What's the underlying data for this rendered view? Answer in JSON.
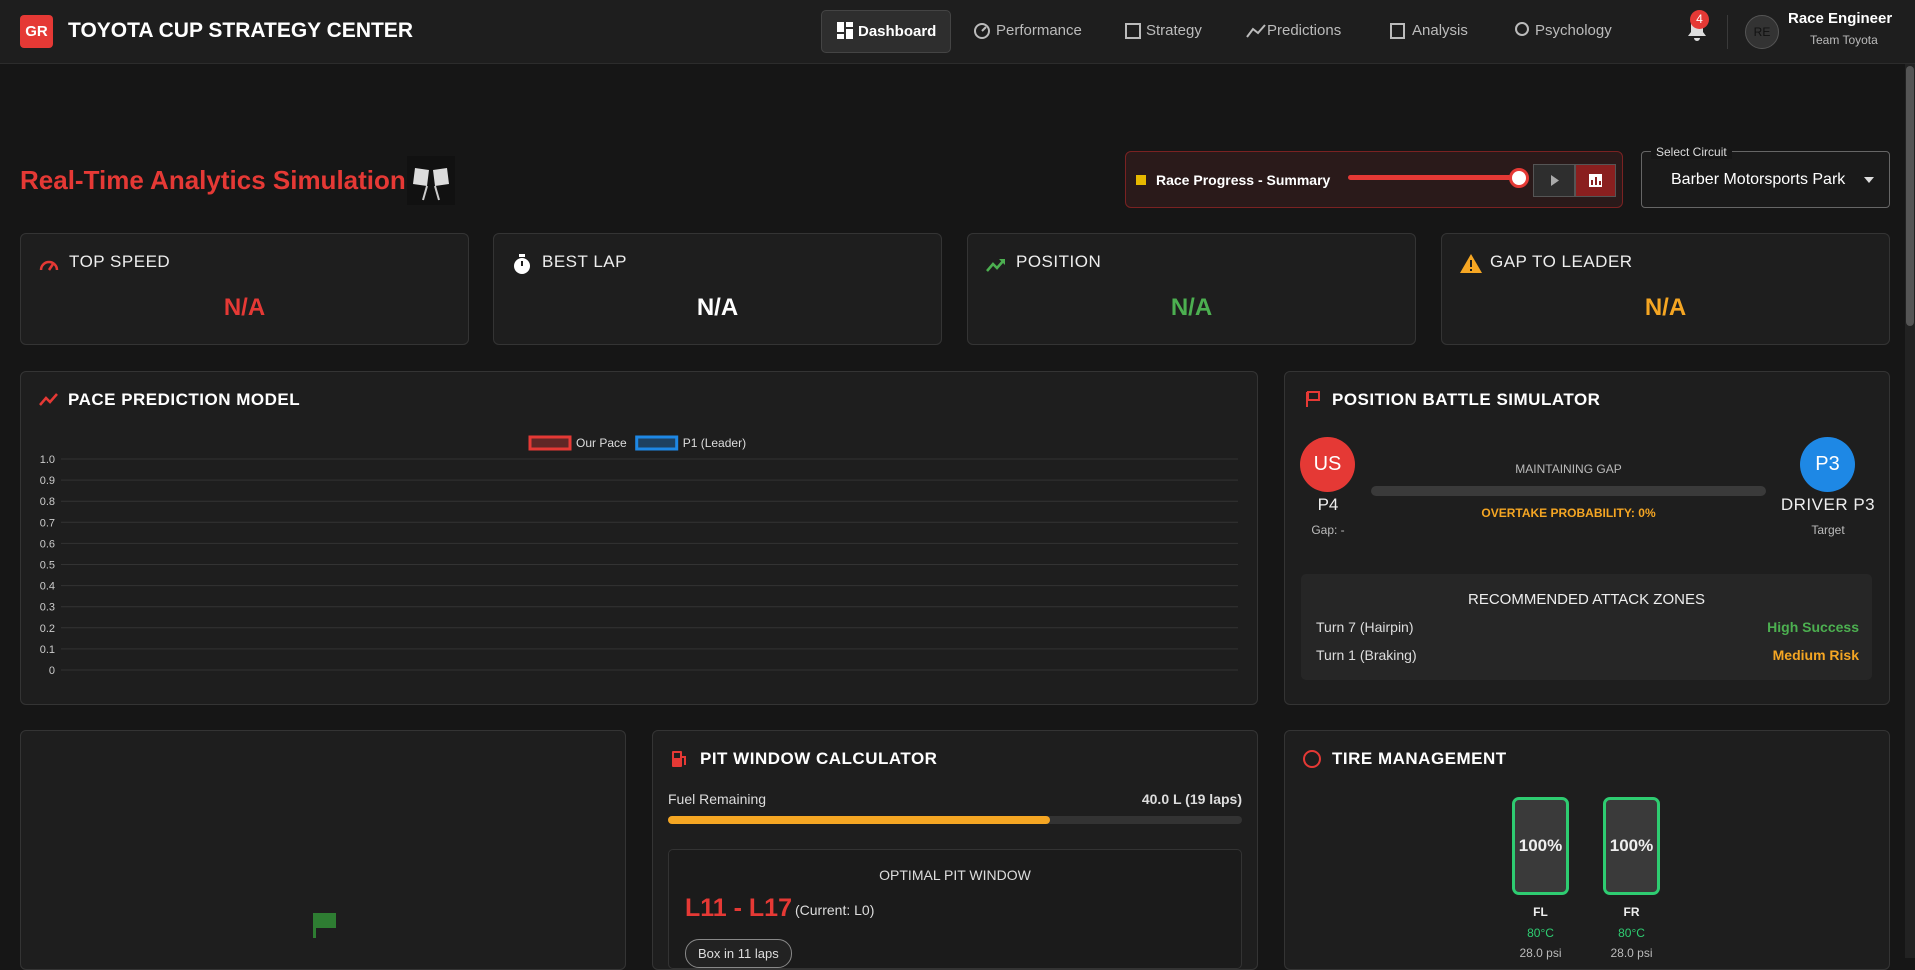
{
  "header": {
    "logo": "GR",
    "title": "TOYOTA CUP STRATEGY CENTER",
    "nav": [
      "Dashboard",
      "Performance",
      "Strategy",
      "Predictions",
      "Analysis",
      "Psychology"
    ],
    "notifications": 4,
    "avatar": "RE",
    "user_name": "Race Engineer",
    "user_team": "Team Toyota"
  },
  "simulation": {
    "title": "Real-Time Analytics Simulation",
    "progress_label": "Race Progress - Summary",
    "circuit_label": "Select Circuit",
    "circuit": "Barber Motorsports Park"
  },
  "kpis": [
    {
      "label": "TOP SPEED",
      "value": "N/A"
    },
    {
      "label": "BEST LAP",
      "value": "N/A"
    },
    {
      "label": "POSITION",
      "value": "N/A"
    },
    {
      "label": "GAP TO LEADER",
      "value": "N/A"
    }
  ],
  "pace_chart": {
    "title": "PACE PREDICTION MODEL",
    "series": [
      {
        "name": "Our Pace",
        "color": "#e53935"
      },
      {
        "name": "P1 (Leader)",
        "color": "#1e88e5"
      }
    ],
    "ylim": [
      0,
      1
    ],
    "yticks": [
      0,
      0.1,
      0.2,
      0.3,
      0.4,
      0.5,
      0.6,
      0.7,
      0.8,
      0.9,
      {
        "value": 1,
        "label": "1.0"
      }
    ],
    "grid": true
  },
  "battle": {
    "title": "POSITION BATTLE SIMULATOR",
    "us_badge": "US",
    "us_position": "P4",
    "us_gap": "Gap: -",
    "status": "MAINTAINING GAP",
    "overtake": "OVERTAKE PROBABILITY: 0%",
    "rival_badge": "P3",
    "rival_name": "DRIVER P3",
    "rival_role": "Target",
    "zones_title": "RECOMMENDED ATTACK ZONES",
    "zones": [
      {
        "turn": "Turn 7 (Hairpin)",
        "rating": "High Success"
      },
      {
        "turn": "Turn 1 (Braking)",
        "rating": "Medium Risk"
      }
    ]
  },
  "pit": {
    "title": "PIT WINDOW CALCULATOR",
    "fuel_label": "Fuel Remaining",
    "fuel_value": "40.0 L (19 laps)",
    "window_title": "OPTIMAL PIT WINDOW",
    "window": "L11 - L17",
    "current": "(Current: L0)",
    "action": "Box in 11 laps"
  },
  "tires": {
    "title": "TIRE MANAGEMENT",
    "items": [
      {
        "wear": "100%",
        "name": "FL",
        "temp": "80°C",
        "pressure": "28.0 psi"
      },
      {
        "wear": "100%",
        "name": "FR",
        "temp": "80°C",
        "pressure": "28.0 psi"
      }
    ]
  }
}
